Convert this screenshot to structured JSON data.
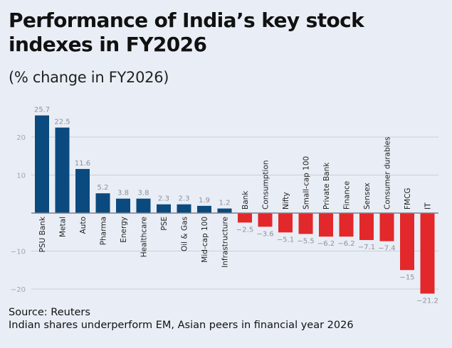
{
  "chart_data": {
    "type": "bar",
    "title": "Performance of India’s key stock indexes in FY2026",
    "subtitle": "(% change in FY2026)",
    "categories": [
      "PSU Bank",
      "Metal",
      "Auto",
      "Pharma",
      "Energy",
      "Healthcare",
      "PSE",
      "Oil & Gas",
      "Mid-cap 100",
      "Infrastructure",
      "Bank",
      "Consumption",
      "Nifty",
      "Small-cap 100",
      "Private Bank",
      "Finance",
      "Sensex",
      "Consumer durables",
      "FMCG",
      "IT"
    ],
    "values": [
      25.7,
      22.5,
      11.6,
      5.2,
      3.8,
      3.8,
      2.3,
      2.3,
      1.9,
      1.2,
      -2.5,
      -3.6,
      -5.1,
      -5.5,
      -6.2,
      -6.2,
      -7.1,
      -7.4,
      -15,
      -21.2
    ],
    "value_labels": [
      "25.7",
      "22.5",
      "11.6",
      "5.2",
      "3.8",
      "3.8",
      "2.3",
      "2.3",
      "1.9",
      "1.2",
      "−2.5",
      "−3.6",
      "−5.1",
      "−5.5",
      "−6.2",
      "−6.2",
      "−7.1",
      "−7.4",
      "−15",
      "−21.2"
    ],
    "yticks": [
      -20,
      -10,
      0,
      10,
      20
    ],
    "ytick_labels": [
      "−20",
      "−10",
      "",
      "10",
      "20"
    ],
    "ylim": [
      -22,
      27
    ],
    "grid": true,
    "colors": {
      "positive": "#0b4a7f",
      "negative": "#e2282b",
      "grid": "#c9ced8",
      "axis": "#7d7f86",
      "tick_text": "#a2a6ae",
      "value_text": "#8d9199"
    },
    "xlabel": "",
    "ylabel": ""
  },
  "footer": {
    "source": "Source: Reuters",
    "caption": "Indian shares underperform EM, Asian peers in financial year 2026"
  }
}
